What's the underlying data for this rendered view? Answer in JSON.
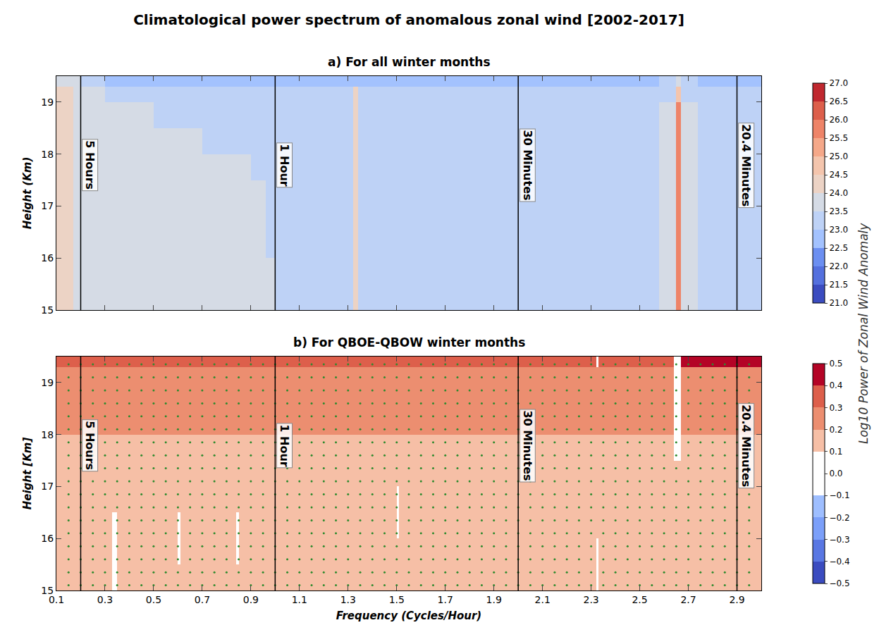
{
  "chart_data": {
    "type": "heatmap",
    "title": "Climatological power spectrum of anomalous zonal wind [2002-2017]",
    "x_label": "Frequency (Cycles/Hour)",
    "colorbar_label": "Log10 Power of Zonal Wind Anomaly",
    "xlim": [
      0.1,
      3.0
    ],
    "xticks": [
      0.1,
      0.3,
      0.5,
      0.7,
      0.9,
      1.1,
      1.3,
      1.5,
      1.7,
      1.9,
      2.1,
      2.3,
      2.5,
      2.7,
      2.9
    ],
    "grid": false,
    "period_lines": [
      {
        "x": 0.2,
        "label": "5 Hours"
      },
      {
        "x": 1.0,
        "label": "1 Hour"
      },
      {
        "x": 2.0,
        "label": "30 Minutes"
      },
      {
        "x": 2.9,
        "label": "20.4 Minutes"
      }
    ],
    "panels": [
      {
        "title": "a) For all winter months",
        "y_label": "Height (Km)",
        "ylim": [
          15,
          19.5
        ],
        "yticks": [
          15,
          16,
          17,
          18,
          19
        ],
        "tick_labels": "y",
        "x_bins": [
          0.1,
          0.17,
          0.2,
          0.3,
          0.4,
          0.5,
          0.6,
          0.7,
          0.8,
          0.9,
          0.96,
          1.0,
          1.32,
          1.34,
          1.96,
          2.0,
          2.58,
          2.65,
          2.67,
          2.74,
          3.0
        ],
        "y_bins": [
          15,
          15.5,
          16,
          16.5,
          17,
          17.5,
          18,
          18.5,
          19,
          19.3,
          19.5
        ],
        "z": [
          [
            24.25,
            23.75,
            23.75,
            23.75,
            23.75,
            23.75,
            23.75,
            23.75,
            23.75,
            23.75,
            23.75,
            23.25,
            24.25,
            23.25,
            23.25,
            23.25,
            23.75,
            25.75,
            23.75,
            23.25
          ],
          [
            24.25,
            23.75,
            23.75,
            23.75,
            23.75,
            23.75,
            23.75,
            23.75,
            23.75,
            23.75,
            23.75,
            23.25,
            24.25,
            23.25,
            23.25,
            23.25,
            23.75,
            25.75,
            23.75,
            23.25
          ],
          [
            24.25,
            23.75,
            23.75,
            23.75,
            23.75,
            23.75,
            23.75,
            23.75,
            23.75,
            23.75,
            23.25,
            23.25,
            24.25,
            23.25,
            23.25,
            23.25,
            23.75,
            25.75,
            23.75,
            23.25
          ],
          [
            24.25,
            23.75,
            23.75,
            23.75,
            23.75,
            23.75,
            23.75,
            23.75,
            23.75,
            23.75,
            23.25,
            23.25,
            24.25,
            23.25,
            23.25,
            23.25,
            23.75,
            25.75,
            23.75,
            23.25
          ],
          [
            24.25,
            23.75,
            23.75,
            23.75,
            23.75,
            23.75,
            23.75,
            23.75,
            23.75,
            23.75,
            23.25,
            23.25,
            24.25,
            23.25,
            23.25,
            23.25,
            23.75,
            25.75,
            23.75,
            23.25
          ],
          [
            24.25,
            23.75,
            23.75,
            23.75,
            23.75,
            23.75,
            23.75,
            23.75,
            23.75,
            23.25,
            23.25,
            23.25,
            24.25,
            23.25,
            23.25,
            23.25,
            23.75,
            25.75,
            23.75,
            23.25
          ],
          [
            24.25,
            23.75,
            23.75,
            23.75,
            23.75,
            23.75,
            23.75,
            23.25,
            23.25,
            23.25,
            23.25,
            23.25,
            24.25,
            23.25,
            23.25,
            23.25,
            23.75,
            25.75,
            23.75,
            23.25
          ],
          [
            24.25,
            23.75,
            23.75,
            23.75,
            23.75,
            23.25,
            23.25,
            23.25,
            23.25,
            23.25,
            23.25,
            23.25,
            24.25,
            23.25,
            23.25,
            23.25,
            23.75,
            25.75,
            23.75,
            23.25
          ],
          [
            24.25,
            23.75,
            23.75,
            23.25,
            23.25,
            23.25,
            23.25,
            23.25,
            23.25,
            23.25,
            23.25,
            23.25,
            24.25,
            23.25,
            23.25,
            23.25,
            23.25,
            24.75,
            23.25,
            23.25
          ],
          [
            23.75,
            23.75,
            23.25,
            22.75,
            22.75,
            22.75,
            22.75,
            22.75,
            22.75,
            22.75,
            22.75,
            22.75,
            22.75,
            22.75,
            22.75,
            22.75,
            23.25,
            23.75,
            23.25,
            22.75
          ]
        ],
        "colors": [
          "#3b4cc0",
          "#5470de",
          "#6c8ff1",
          "#a3c2fe",
          "#bed2f6",
          "#d5dbe5",
          "#ecd3c5",
          "#f4c5ad",
          "#f5a889",
          "#ee8468",
          "#dd5f4b",
          "#c0282f"
        ],
        "colorbar": {
          "range": [
            21,
            27
          ],
          "ticks": [
            {
              "value": 21,
              "label": "21.0"
            },
            21.5,
            {
              "value": 22,
              "label": "22.0"
            },
            22.5,
            {
              "value": 23,
              "label": "23.0"
            },
            23.5,
            {
              "value": 24,
              "label": "24.0"
            },
            24.5,
            {
              "value": 25,
              "label": "25.0"
            },
            25.5,
            {
              "value": 26,
              "label": "26.0"
            },
            26.5,
            {
              "value": 27,
              "label": "27.0"
            }
          ]
        }
      },
      {
        "title": "b) For QBOE-QBOW winter months",
        "y_label": "Height [Km]",
        "ylim": [
          15,
          19.5
        ],
        "yticks": [
          15,
          16,
          17,
          18,
          19
        ],
        "x_bins": [
          0.1,
          0.33,
          0.35,
          0.6,
          0.61,
          0.84,
          0.85,
          1.5,
          1.51,
          2.32,
          2.33,
          2.64,
          2.67,
          3.0
        ],
        "y_bins": [
          15,
          15.5,
          16,
          16.5,
          17,
          17.5,
          18,
          18.5,
          19,
          19.3,
          19.5
        ],
        "z": [
          [
            0.15,
            0.05,
            0.15,
            0.15,
            0.15,
            0.15,
            0.15,
            0.15,
            0.15,
            0.05,
            0.15,
            0.15,
            0.15
          ],
          [
            0.15,
            0.05,
            0.15,
            0.05,
            0.15,
            0.05,
            0.15,
            0.15,
            0.15,
            0.05,
            0.15,
            0.15,
            0.15
          ],
          [
            0.15,
            0.05,
            0.15,
            0.05,
            0.15,
            0.05,
            0.15,
            0.05,
            0.15,
            0.15,
            0.15,
            0.15,
            0.15
          ],
          [
            0.15,
            0.15,
            0.15,
            0.15,
            0.15,
            0.15,
            0.15,
            0.05,
            0.15,
            0.15,
            0.15,
            0.15,
            0.15
          ],
          [
            0.15,
            0.15,
            0.15,
            0.15,
            0.15,
            0.15,
            0.15,
            0.15,
            0.15,
            0.15,
            0.15,
            0.15,
            0.15
          ],
          [
            0.15,
            0.15,
            0.15,
            0.15,
            0.15,
            0.15,
            0.15,
            0.15,
            0.15,
            0.15,
            0.15,
            0.05,
            0.15
          ],
          [
            0.25,
            0.25,
            0.25,
            0.25,
            0.25,
            0.25,
            0.25,
            0.25,
            0.25,
            0.25,
            0.25,
            0.05,
            0.25
          ],
          [
            0.25,
            0.25,
            0.25,
            0.25,
            0.25,
            0.25,
            0.25,
            0.25,
            0.25,
            0.25,
            0.25,
            0.05,
            0.25
          ],
          [
            0.25,
            0.25,
            0.25,
            0.25,
            0.25,
            0.25,
            0.25,
            0.25,
            0.25,
            0.25,
            0.25,
            0.05,
            0.25
          ],
          [
            0.35,
            0.35,
            0.35,
            0.35,
            0.35,
            0.35,
            0.35,
            0.35,
            0.35,
            0.05,
            0.35,
            0.05,
            0.45
          ]
        ],
        "colors": [
          "#3b4cc0",
          "#5977e3",
          "#7b9ff9",
          "#9ebeff",
          "#ffffff",
          "#ffffff",
          "#f6bfa6",
          "#ec8e70",
          "#dd5f4b",
          "#b40426"
        ],
        "colorbar": {
          "range": [
            -0.5,
            0.5
          ],
          "ticks": [
            {
              "value": -0.5,
              "label": "−0.5"
            },
            {
              "value": -0.4,
              "label": "−0.4"
            },
            {
              "value": -0.3,
              "label": "−0.3"
            },
            {
              "value": -0.2,
              "label": "−0.2"
            },
            {
              "value": -0.1,
              "label": "−0.1"
            },
            {
              "value": 0,
              "label": "0.0"
            },
            0.1,
            0.2,
            0.3,
            0.4,
            0.5
          ]
        },
        "significance": {
          "marker": "dot",
          "color": "#2e8b2e",
          "x": [
            0.15,
            0.2,
            0.25,
            0.3,
            0.35,
            0.4,
            0.45,
            0.5,
            0.55,
            0.6,
            0.65,
            0.7,
            0.75,
            0.8,
            0.85,
            0.9,
            0.95,
            1.0,
            1.05,
            1.1,
            1.15,
            1.2,
            1.25,
            1.3,
            1.35,
            1.4,
            1.45,
            1.5,
            1.55,
            1.6,
            1.65,
            1.7,
            1.75,
            1.8,
            1.85,
            1.9,
            1.95,
            2.0,
            2.05,
            2.1,
            2.15,
            2.2,
            2.25,
            2.3,
            2.35,
            2.4,
            2.45,
            2.5,
            2.55,
            2.6,
            2.65,
            2.7,
            2.75,
            2.8,
            2.85,
            2.9,
            2.95
          ],
          "y": [
            15.1,
            15.35,
            15.6,
            15.85,
            16.1,
            16.35,
            16.6,
            16.85,
            17.1,
            17.35,
            17.6,
            17.85,
            18.1,
            18.35,
            18.6,
            18.85,
            19.1,
            19.35
          ]
        }
      }
    ]
  }
}
